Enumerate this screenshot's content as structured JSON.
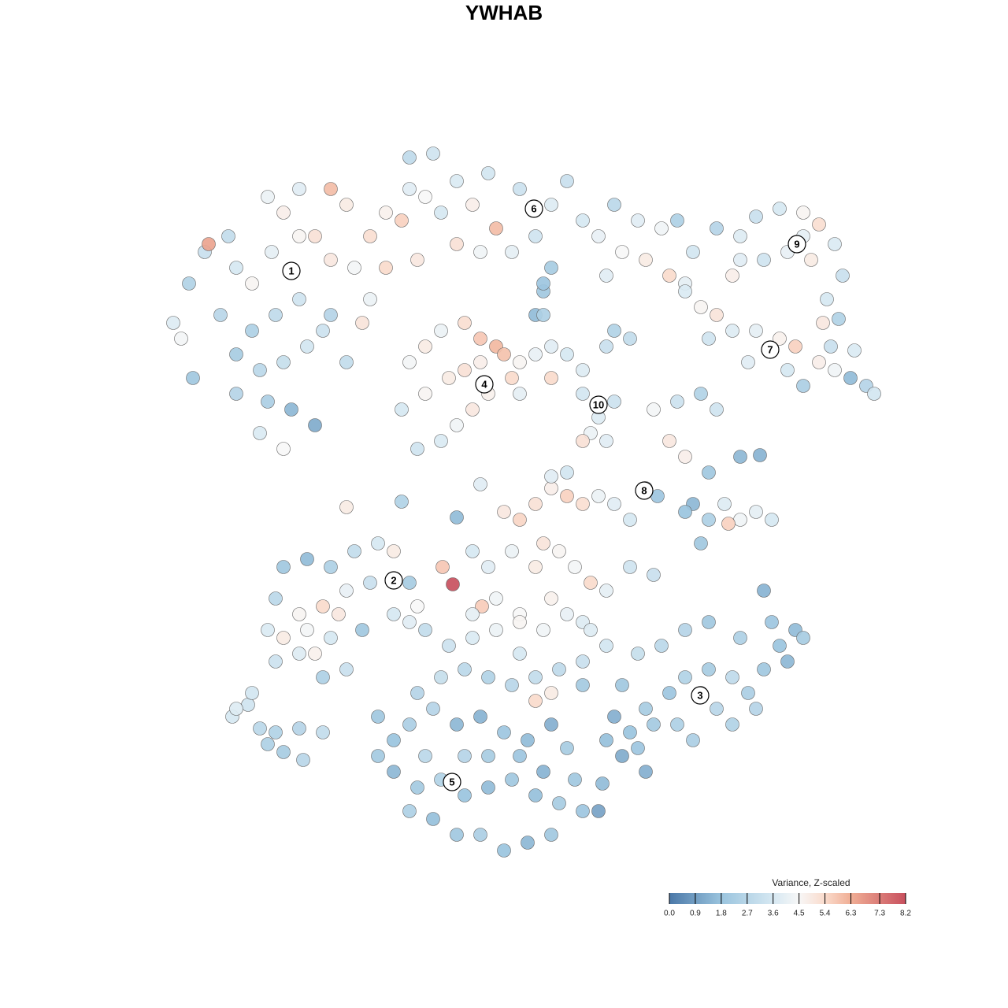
{
  "chart_data": {
    "type": "scatter",
    "title": "YWHAB",
    "xlim": [
      0,
      930
    ],
    "ylim": [
      0,
      915
    ],
    "x": [
      20,
      40,
      60,
      65,
      90,
      100,
      120,
      140,
      160,
      180,
      220,
      240,
      200,
      220,
      250,
      180,
      150,
      120,
      100,
      130,
      160,
      190,
      210,
      100,
      140,
      170,
      200,
      130,
      160,
      80,
      30,
      45,
      270,
      290,
      310,
      320,
      340,
      360,
      330,
      290,
      270,
      260,
      220,
      240,
      320,
      350,
      180,
      145,
      380,
      400,
      430,
      420,
      460,
      500,
      520,
      540,
      560,
      590,
      620,
      640,
      610,
      580,
      480,
      450,
      410,
      380,
      500,
      490,
      480,
      570,
      650,
      670,
      660,
      680,
      710,
      740,
      760,
      790,
      820,
      840,
      860,
      870,
      850,
      830,
      800,
      770,
      740,
      730,
      865,
      820,
      670,
      690,
      710,
      730,
      700,
      760,
      790,
      810,
      840,
      860,
      880,
      900,
      910,
      800,
      820,
      750,
      855,
      885,
      845,
      320,
      340,
      360,
      390,
      410,
      430,
      440,
      450,
      420,
      400,
      380,
      360,
      330,
      310,
      340,
      370,
      390,
      410,
      460,
      480,
      500,
      520,
      460,
      500,
      540,
      570,
      600,
      580,
      490,
      490,
      540,
      560,
      580,
      550,
      570,
      540,
      630,
      650,
      670,
      660,
      690,
      710,
      740,
      765,
      700,
      680,
      700,
      720,
      740,
      760,
      780,
      725,
      690,
      670,
      635,
      620,
      440,
      460,
      480,
      500,
      520,
      540,
      560,
      580,
      600,
      490,
      510,
      530,
      550,
      570,
      600,
      630,
      480,
      450,
      420,
      400,
      430,
      460,
      500,
      540,
      410,
      500,
      520,
      375,
      362,
      412,
      240,
      310,
      380,
      160,
      190,
      220,
      250,
      280,
      300,
      320,
      270,
      240,
      210,
      180,
      150,
      140,
      160,
      190,
      220,
      200,
      180,
      150,
      210,
      240,
      260,
      300,
      330,
      320,
      230,
      95,
      115,
      100,
      130,
      150,
      160,
      180,
      185,
      210,
      120,
      140,
      580,
      600,
      620,
      650,
      670,
      690,
      710,
      730,
      750,
      770,
      790,
      810,
      820,
      780,
      740,
      700,
      670,
      640,
      610,
      590,
      570,
      590,
      610,
      630,
      660,
      700,
      730,
      760,
      800,
      770,
      680,
      620,
      340,
      370,
      400,
      430,
      460,
      490,
      520,
      550,
      570,
      540,
      510,
      480,
      450,
      420,
      390,
      360,
      330,
      500,
      480,
      540,
      460,
      400,
      280,
      300,
      320,
      350,
      380,
      410,
      440,
      470,
      500,
      520,
      300,
      330,
      360,
      390,
      420,
      450,
      480,
      510,
      540,
      560,
      320,
      350,
      380,
      410,
      440,
      470,
      500,
      390,
      420,
      460,
      340,
      280,
      490,
      530,
      565
    ],
    "y": [
      685,
      735,
      775,
      785,
      795,
      755,
      735,
      845,
      825,
      855,
      855,
      835,
      795,
      765,
      755,
      715,
      695,
      675,
      645,
      625,
      635,
      655,
      675,
      595,
      585,
      575,
      555,
      545,
      525,
      695,
      665,
      615,
      795,
      825,
      815,
      855,
      845,
      825,
      765,
      755,
      715,
      685,
      695,
      635,
      895,
      900,
      795,
      775,
      865,
      835,
      805,
      875,
      855,
      835,
      865,
      815,
      795,
      775,
      765,
      805,
      815,
      835,
      795,
      775,
      775,
      785,
      755,
      725,
      695,
      745,
      745,
      735,
      815,
      775,
      805,
      795,
      820,
      830,
      825,
      810,
      785,
      745,
      715,
      765,
      775,
      765,
      765,
      745,
      690,
      795,
      725,
      705,
      695,
      675,
      665,
      675,
      665,
      655,
      635,
      625,
      615,
      605,
      595,
      625,
      605,
      635,
      655,
      650,
      685,
      635,
      655,
      675,
      685,
      665,
      655,
      645,
      615,
      595,
      575,
      555,
      535,
      525,
      575,
      595,
      615,
      625,
      635,
      635,
      645,
      655,
      645,
      595,
      615,
      625,
      655,
      665,
      675,
      695,
      735,
      595,
      565,
      585,
      545,
      535,
      535,
      575,
      535,
      515,
      585,
      595,
      575,
      515,
      517,
      495,
      455,
      435,
      455,
      435,
      445,
      435,
      430,
      405,
      445,
      465,
      475,
      445,
      435,
      455,
      475,
      465,
      455,
      465,
      455,
      435,
      405,
      395,
      375,
      355,
      345,
      375,
      365,
      375,
      395,
      375,
      395,
      335,
      315,
      335,
      305,
      480,
      490,
      495,
      353,
      375,
      325,
      451,
      458,
      438,
      375,
      385,
      375,
      395,
      405,
      395,
      355,
      355,
      345,
      325,
      315,
      335,
      295,
      285,
      295,
      285,
      265,
      265,
      255,
      235,
      245,
      295,
      315,
      325,
      305,
      315,
      185,
      200,
      195,
      170,
      165,
      140,
      170,
      130,
      165,
      215,
      150,
      185,
      165,
      195,
      215,
      235,
      215,
      195,
      175,
      215,
      245,
      275,
      295,
      285,
      305,
      285,
      305,
      295,
      275,
      265,
      225,
      155,
      135,
      145,
      175,
      175,
      245,
      235,
      195,
      255,
      345,
      155,
      115,
      295,
      275,
      285,
      295,
      305,
      295,
      315,
      295,
      275,
      255,
      245,
      235,
      225,
      235,
      245,
      235,
      215,
      215,
      205,
      225,
      265,
      315,
      185,
      155,
      175,
      195,
      175,
      185,
      165,
      155,
      175,
      145,
      115,
      95,
      105,
      85,
      95,
      105,
      85,
      75,
      65,
      65,
      65,
      55,
      35,
      35,
      15,
      25,
      35,
      135,
      135,
      135,
      135,
      135,
      115,
      105,
      100
    ],
    "values": [
      3.8,
      2.5,
      3.2,
      6.5,
      3.0,
      3.6,
      4.6,
      4.2,
      4.8,
      3.9,
      6.0,
      4.9,
      5.2,
      5.0,
      4.4,
      3.4,
      2.9,
      2.4,
      2.2,
      2.8,
      3.1,
      3.5,
      3.3,
      2.6,
      2.3,
      1.5,
      1.2,
      3.7,
      4.5,
      2.7,
      4.4,
      2.0,
      5.3,
      4.7,
      5.6,
      3.9,
      4.5,
      3.6,
      5.0,
      5.4,
      4.2,
      5.1,
      2.6,
      3.0,
      2.9,
      3.4,
      4.6,
      4.0,
      3.7,
      4.8,
      6.0,
      3.5,
      3.3,
      3.8,
      3.2,
      3.6,
      4.1,
      4.5,
      4.9,
      4.3,
      3.9,
      2.8,
      3.4,
      4.0,
      4.3,
      5.2,
      2.2,
      2.0,
      1.6,
      3.9,
      5.4,
      4.0,
      2.4,
      3.5,
      2.6,
      3.8,
      3.2,
      3.6,
      4.6,
      5.3,
      3.7,
      3.2,
      3.6,
      4.9,
      4.1,
      3.4,
      3.9,
      4.8,
      2.5,
      4.0,
      3.7,
      4.6,
      5.1,
      3.8,
      3.4,
      4.0,
      4.7,
      5.6,
      4.8,
      4.3,
      1.6,
      2.6,
      3.5,
      3.6,
      2.3,
      3.9,
      3.2,
      3.7,
      5.0,
      4.4,
      4.9,
      4.2,
      5.3,
      5.8,
      6.1,
      5.9,
      5.4,
      4.7,
      5.0,
      4.3,
      3.7,
      3.4,
      3.6,
      4.6,
      4.9,
      5.2,
      4.8,
      4.6,
      4.1,
      3.9,
      3.6,
      4.0,
      5.4,
      3.8,
      3.2,
      3.0,
      2.5,
      2.4,
      1.9,
      3.5,
      3.8,
      3.3,
      4.2,
      3.9,
      5.2,
      4.4,
      5.0,
      4.8,
      3.3,
      2.5,
      3.4,
      1.5,
      1.4,
      2.0,
      1.5,
      2.4,
      3.8,
      4.3,
      4.0,
      3.6,
      5.6,
      2.0,
      1.8,
      1.9,
      3.2,
      5.0,
      5.5,
      5.2,
      4.8,
      5.6,
      5.3,
      4.2,
      3.9,
      3.6,
      5.1,
      4.6,
      4.4,
      5.4,
      4.0,
      3.4,
      3.2,
      4.9,
      4.2,
      3.9,
      3.6,
      4.3,
      4.5,
      4.7,
      3.8,
      3.9,
      3.9,
      3.5,
      8.2,
      5.8,
      5.7,
      4.9,
      2.5,
      1.6,
      2.0,
      1.6,
      2.4,
      3.0,
      3.6,
      4.9,
      2.2,
      3.2,
      4.1,
      5.4,
      4.6,
      2.8,
      3.7,
      4.9,
      4.4,
      3.6,
      4.7,
      3.8,
      3.3,
      2.4,
      3.2,
      2.0,
      3.6,
      4.5,
      3.9,
      5.0,
      3.6,
      3.4,
      3.8,
      2.8,
      2.5,
      2.2,
      2.6,
      2.7,
      3.0,
      3.5,
      2.4,
      1.3,
      1.8,
      2.2,
      1.9,
      2.5,
      3.0,
      2.7,
      2.5,
      2.3,
      2.0,
      1.8,
      1.6,
      2.2,
      1.9,
      2.4,
      2.0,
      2.6,
      2.8,
      3.1,
      2.0,
      1.7,
      1.2,
      1.9,
      2.1,
      2.4,
      2.2,
      2.9,
      2.6,
      1.5,
      1.4,
      2.3,
      1.3,
      3.0,
      3.3,
      3.7,
      4.2,
      4.6,
      4.3,
      4.1,
      3.8,
      3.5,
      3.2,
      2.9,
      3.0,
      2.7,
      2.5,
      2.8,
      3.1,
      2.6,
      4.9,
      5.4,
      2.1,
      3.6,
      4.0,
      2.0,
      1.8,
      2.3,
      2.6,
      1.5,
      1.4,
      1.9,
      1.6,
      1.3,
      2.2,
      1.5,
      2.1,
      2.5,
      1.8,
      1.6,
      2.0,
      1.7,
      2.2,
      1.9,
      1.0,
      2.4,
      1.7,
      2.0,
      2.3,
      1.8,
      1.5,
      2.0,
      2.6,
      2.2,
      1.9,
      2.8,
      2.1,
      1.4,
      2.0,
      1.6
    ],
    "annotations": [
      {
        "text": "1",
        "x": 170,
        "y": 751
      },
      {
        "text": "2",
        "x": 300,
        "y": 358
      },
      {
        "text": "3",
        "x": 689,
        "y": 212
      },
      {
        "text": "4",
        "x": 415,
        "y": 607
      },
      {
        "text": "5",
        "x": 374,
        "y": 102
      },
      {
        "text": "6",
        "x": 478,
        "y": 830
      },
      {
        "text": "7",
        "x": 778,
        "y": 651
      },
      {
        "text": "8",
        "x": 618,
        "y": 472
      },
      {
        "text": "9",
        "x": 812,
        "y": 785
      },
      {
        "text": "10",
        "x": 560,
        "y": 581
      }
    ],
    "colorbar": {
      "title": "Variance, Z-scaled",
      "lim": [
        0,
        8.2
      ],
      "ticks": [
        {
          "value": 0,
          "label": "0.0"
        },
        0.9,
        1.8,
        2.7,
        3.6,
        4.5,
        5.4,
        6.3,
        7.3,
        8.2
      ],
      "colorscale": [
        [
          0,
          "#4b78a8"
        ],
        [
          1.8,
          "#9ac4de"
        ],
        [
          3.6,
          "#d6e8f2"
        ],
        [
          4.5,
          "#f7f7f7"
        ],
        [
          5.4,
          "#fadbcc"
        ],
        [
          6.3,
          "#f0ae95"
        ],
        [
          8.2,
          "#c8505e"
        ]
      ]
    }
  }
}
